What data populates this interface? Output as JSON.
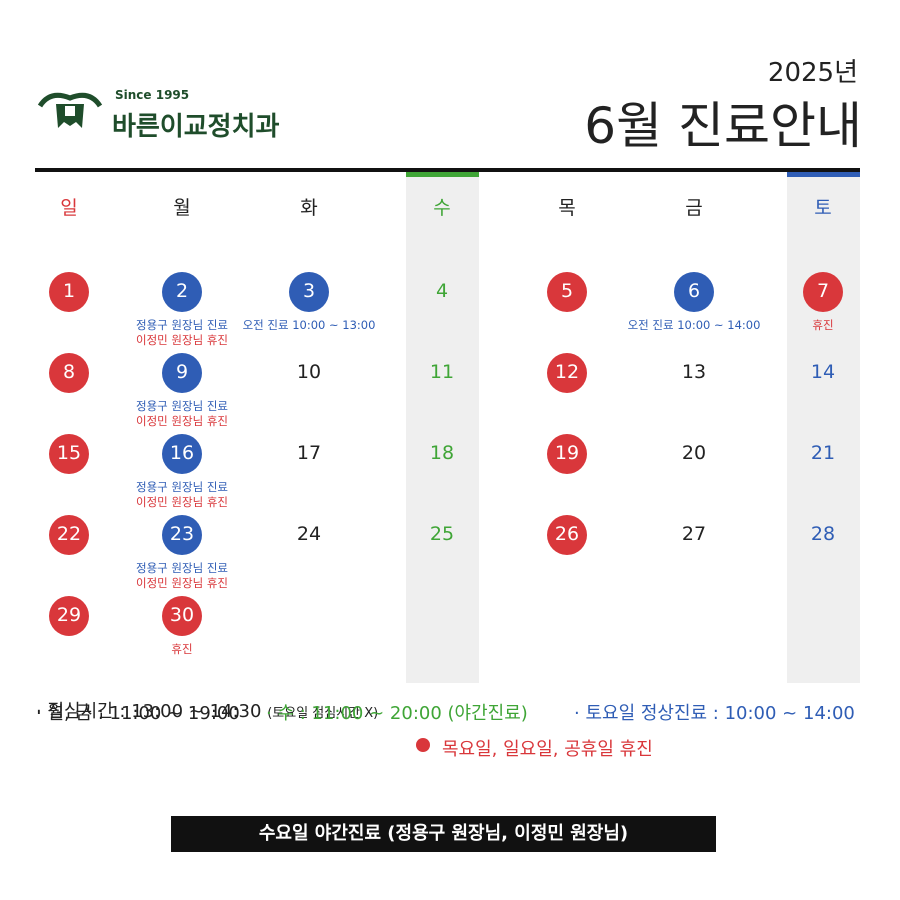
{
  "header": {
    "since": "Since 1995",
    "clinic": "바른이교정치과",
    "year": "2025년",
    "title": "6월 진료안내"
  },
  "calendar": {
    "weekdays": [
      {
        "label": "일",
        "color": "#d9373b"
      },
      {
        "label": "월",
        "color": "#222222"
      },
      {
        "label": "화",
        "color": "#222222"
      },
      {
        "label": "수",
        "color": "#3fa536",
        "highlight": true
      },
      {
        "label": "목",
        "color": "#222222"
      },
      {
        "label": "금",
        "color": "#222222"
      },
      {
        "label": "토",
        "color": "#2f5db5",
        "highlight": true
      }
    ],
    "weeks": [
      [
        {
          "day": 1,
          "circle": "#d9373b"
        },
        {
          "day": 2,
          "circle": "#2f5db5",
          "notes": [
            {
              "text": "정용구 원장님 진료",
              "color": "#2f5db5"
            },
            {
              "text": "이정민 원장님 휴진",
              "color": "#d9373b"
            }
          ]
        },
        {
          "day": 3,
          "circle": "#2f5db5",
          "notes": [
            {
              "text": "오전 진료 10:00 ~ 13:00",
              "color": "#2f5db5"
            }
          ]
        },
        {
          "day": 4
        },
        {
          "day": 5,
          "circle": "#d9373b"
        },
        {
          "day": 6,
          "circle": "#2f5db5",
          "notes": [
            {
              "text": "오전 진료 10:00 ~ 14:00",
              "color": "#2f5db5"
            }
          ]
        },
        {
          "day": 7,
          "circle": "#d9373b",
          "notes": [
            {
              "text": "휴진",
              "color": "#d9373b"
            }
          ]
        }
      ],
      [
        {
          "day": 8,
          "circle": "#d9373b"
        },
        {
          "day": 9,
          "circle": "#2f5db5",
          "notes": [
            {
              "text": "정용구 원장님 진료",
              "color": "#2f5db5"
            },
            {
              "text": "이정민 원장님 휴진",
              "color": "#d9373b"
            }
          ]
        },
        {
          "day": 10
        },
        {
          "day": 11
        },
        {
          "day": 12,
          "circle": "#d9373b"
        },
        {
          "day": 13
        },
        {
          "day": 14
        }
      ],
      [
        {
          "day": 15,
          "circle": "#d9373b"
        },
        {
          "day": 16,
          "circle": "#2f5db5",
          "notes": [
            {
              "text": "정용구 원장님 진료",
              "color": "#2f5db5"
            },
            {
              "text": "이정민 원장님 휴진",
              "color": "#d9373b"
            }
          ]
        },
        {
          "day": 17
        },
        {
          "day": 18
        },
        {
          "day": 19,
          "circle": "#d9373b"
        },
        {
          "day": 20
        },
        {
          "day": 21
        }
      ],
      [
        {
          "day": 22,
          "circle": "#d9373b"
        },
        {
          "day": 23,
          "circle": "#2f5db5",
          "notes": [
            {
              "text": "정용구 원장님 진료",
              "color": "#2f5db5"
            },
            {
              "text": "이정민 원장님 휴진",
              "color": "#d9373b"
            }
          ]
        },
        {
          "day": 24
        },
        {
          "day": 25
        },
        {
          "day": 26,
          "circle": "#d9373b"
        },
        {
          "day": 27
        },
        {
          "day": 28
        }
      ],
      [
        {
          "day": 29,
          "circle": "#d9373b"
        },
        {
          "day": 30,
          "circle": "#d9373b",
          "notes": [
            {
              "text": "휴진",
              "color": "#d9373b"
            }
          ]
        },
        null,
        null,
        null,
        null,
        null
      ]
    ]
  },
  "footer": {
    "hours": [
      {
        "text": "· 월, 금 : 11:00 ~ 19:00",
        "color": "#222222"
      },
      {
        "text": "· 수 : 11:00 ~ 20:00 (야간진료)",
        "color": "#3fa536"
      },
      {
        "text": "· 토요일 정상진료 : 10:00 ~ 14:00",
        "color": "#2f5db5"
      }
    ],
    "lunch": "· 점심시간 : 13:00 ~ 14:30",
    "lunch_note": "(토요일 점심시간 X)",
    "closed": "목요일, 일요일, 공휴일 휴진",
    "closed_color": "#d9373b",
    "banner": "수요일 야간진료 (정용구 원장님, 이정민 원장님)"
  }
}
